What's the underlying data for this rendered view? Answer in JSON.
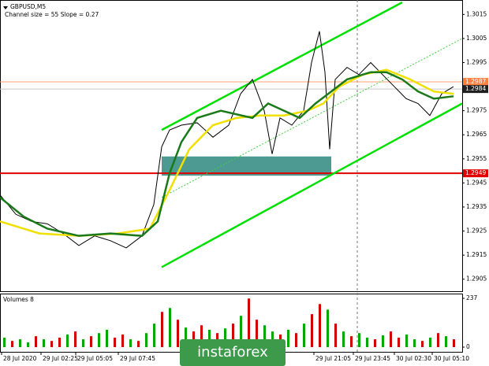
{
  "chart_data": [
    {
      "type": "line",
      "title": "GBPUSD,M5",
      "subtitle": "Channel size = 55 Slope = 0.27",
      "xlim": [
        0,
        146.5
      ],
      "ylim": [
        1.29,
        1.3021
      ],
      "yticks": [
        1.3015,
        1.3005,
        1.2995,
        1.2985,
        1.2975,
        1.2965,
        1.2955,
        1.2945,
        1.2935,
        1.2925,
        1.2915,
        1.2905
      ],
      "series": [
        {
          "color": "#000000",
          "width": 1,
          "x": [
            0,
            5,
            10,
            15,
            20,
            25,
            30,
            35,
            40,
            45,
            48.75,
            51.25,
            53.75,
            57.5,
            62.5,
            67.5,
            72.5,
            76.25,
            80,
            83.75,
            86.25,
            88.75,
            92.5,
            96.25,
            98.75,
            101.25,
            103,
            104.5,
            106.25,
            110,
            113.75,
            117.5,
            121.25,
            125,
            128.75,
            132.5,
            136.25,
            140,
            143.75
          ],
          "values": [
            1.294,
            1.2932,
            1.2929,
            1.2928,
            1.2924,
            1.2919,
            1.2923,
            1.2921,
            1.2918,
            1.2923,
            1.2936,
            1.296,
            1.2967,
            1.2969,
            1.297,
            1.2964,
            1.2969,
            1.2982,
            1.2988,
            1.2975,
            1.2957,
            1.2972,
            1.2969,
            1.2975,
            1.2995,
            1.3008,
            1.2991,
            1.2959,
            1.2988,
            1.2993,
            1.299,
            1.2995,
            1.299,
            1.2985,
            1.298,
            1.2978,
            1.2973,
            1.2982,
            1.2985
          ]
        },
        {
          "color": "#f0e000",
          "width": 2.5,
          "x": [
            0,
            12.5,
            25,
            37.5,
            47.5,
            53.75,
            60,
            67.5,
            75,
            82.5,
            90,
            97.5,
            102.5,
            107.5,
            115,
            122.5,
            130,
            137.5,
            143.75
          ],
          "values": [
            1.2929,
            1.2924,
            1.2923,
            1.2924,
            1.2926,
            1.2942,
            1.2959,
            1.2969,
            1.2972,
            1.2973,
            1.2973,
            1.2975,
            1.2978,
            1.2985,
            1.299,
            1.2992,
            1.2988,
            1.2983,
            1.2982
          ]
        },
        {
          "color": "#1a7a1a",
          "width": 2.5,
          "x": [
            0,
            7.5,
            15,
            25,
            35,
            45,
            50,
            53.75,
            57.5,
            62.5,
            70,
            80,
            85,
            90,
            95,
            100,
            105,
            110,
            117.5,
            122.5,
            127.5,
            132.5,
            137.5,
            143.75
          ],
          "values": [
            1.2939,
            1.2931,
            1.2926,
            1.2923,
            1.2924,
            1.2923,
            1.2929,
            1.2949,
            1.2962,
            1.2972,
            1.2975,
            1.2972,
            1.2978,
            1.2975,
            1.2972,
            1.2978,
            1.2983,
            1.2988,
            1.2991,
            1.2991,
            1.2988,
            1.2983,
            1.298,
            1.2981
          ]
        }
      ],
      "channels": [
        {
          "x": [
            51.25,
            127.5
          ],
          "y": [
            1.2967,
            1.302
          ],
          "color": "#00e000",
          "dash": false
        },
        {
          "x": [
            51.25,
            146.5
          ],
          "y": [
            1.291,
            1.2978
          ],
          "color": "#00e000",
          "dash": false
        },
        {
          "x": [
            51.25,
            146.5
          ],
          "y": [
            1.2939,
            1.3005
          ],
          "color": "#40d040",
          "dash": true
        }
      ],
      "zone": {
        "x": [
          51.25,
          105
        ],
        "y": [
          1.2948,
          1.2956
        ],
        "color": "#3a8f86"
      },
      "hlines": [
        {
          "value": 1.2987,
          "color": "#ffa070",
          "tag": "#ff8040",
          "width": 1
        },
        {
          "value": 1.2984,
          "color": "#c8c8c8",
          "tag": "#202020",
          "width": 1
        },
        {
          "value": 1.2949,
          "color": "#e00000",
          "tag": "#e00000",
          "width": 2
        }
      ],
      "vlines": [
        113.25
      ]
    },
    {
      "type": "bar",
      "title": "Volumes 8",
      "xlim": [
        0,
        146.5
      ],
      "ylim": [
        0,
        237
      ],
      "yticks": [
        237,
        0
      ],
      "x": [
        1.25,
        3.75,
        6.25,
        8.75,
        11.25,
        13.75,
        16.25,
        18.75,
        21.25,
        23.75,
        26.25,
        28.75,
        31.25,
        33.75,
        36.25,
        38.75,
        41.25,
        43.75,
        46.25,
        48.75,
        51.25,
        53.75,
        56.25,
        58.75,
        61.25,
        63.75,
        66.25,
        68.75,
        71.25,
        73.75,
        76.25,
        78.75,
        81.25,
        83.75,
        86.25,
        88.75,
        91.25,
        93.75,
        96.25,
        98.75,
        101.25,
        103.75,
        106.25,
        108.75,
        111.25,
        113.75,
        116.25,
        118.75,
        121.25,
        123.75,
        126.25,
        128.75,
        131.25,
        133.75,
        136.25,
        138.75,
        141.25,
        143.75
      ],
      "values": [
        46,
        30,
        38,
        23,
        53,
        38,
        30,
        46,
        61,
        76,
        38,
        53,
        68,
        84,
        46,
        61,
        38,
        30,
        68,
        114,
        171,
        190,
        133,
        95,
        76,
        106,
        84,
        68,
        91,
        114,
        152,
        236,
        133,
        106,
        76,
        61,
        84,
        68,
        114,
        160,
        209,
        182,
        114,
        76,
        53,
        68,
        46,
        38,
        57,
        76,
        46,
        61,
        38,
        30,
        46,
        68,
        53,
        38
      ],
      "colors": [
        "#00a800",
        "#d00000",
        "#00a800",
        "#00a800",
        "#d00000",
        "#00a800",
        "#d00000",
        "#d00000",
        "#00a800",
        "#d00000",
        "#00a800",
        "#d00000",
        "#00a800",
        "#00a800",
        "#d00000",
        "#d00000",
        "#00a800",
        "#d00000",
        "#00a800",
        "#00a800",
        "#d00000",
        "#00a800",
        "#d00000",
        "#00a800",
        "#d00000",
        "#d00000",
        "#00a800",
        "#d00000",
        "#00a800",
        "#d00000",
        "#00a800",
        "#d00000",
        "#d00000",
        "#00a800",
        "#00a800",
        "#d00000",
        "#00a800",
        "#d00000",
        "#00a800",
        "#d00000",
        "#d00000",
        "#00a800",
        "#d00000",
        "#00a800",
        "#d00000",
        "#00a800",
        "#00a800",
        "#d00000",
        "#00a800",
        "#d00000",
        "#d00000",
        "#00a800",
        "#00a800",
        "#d00000",
        "#00a800",
        "#d00000",
        "#00a800",
        "#d00000"
      ],
      "xticks": [
        {
          "value": 0.5,
          "label": "28 Jul 2020"
        },
        {
          "value": 13,
          "label": "29 Jul 02:25"
        },
        {
          "value": 24,
          "label": "29 Jul 05:05"
        },
        {
          "value": 37.5,
          "label": "29 Jul 07:45"
        },
        {
          "value": 99.5,
          "label": "29 Jul 21:05"
        },
        {
          "value": 112,
          "label": "29 Jul 23:45"
        },
        {
          "value": 125,
          "label": "30 Jul 02:30"
        },
        {
          "value": 137,
          "label": "30 Jul 05:10"
        }
      ]
    }
  ],
  "watermark": "instaforex"
}
